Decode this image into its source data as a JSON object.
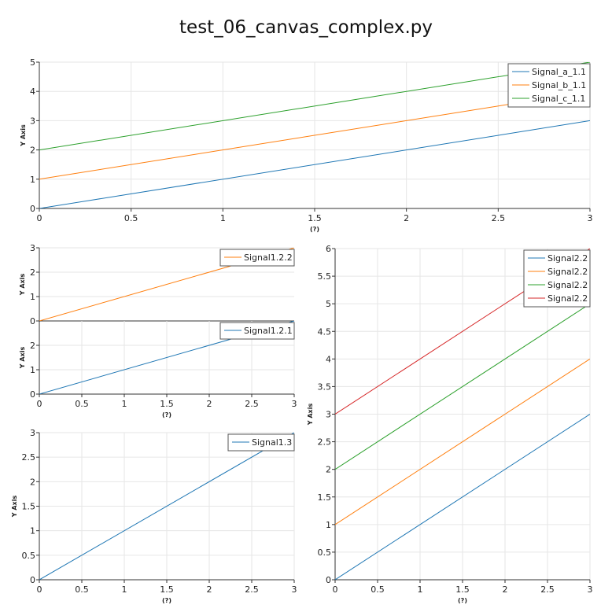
{
  "title": "test_06_canvas_complex.py",
  "colors": {
    "blue": "#1f77b4",
    "orange": "#ff7f0e",
    "green": "#2ca02c",
    "red": "#d62728",
    "grid": "#e6e6e6"
  },
  "chart_data": [
    {
      "type": "line",
      "xlabel": "(?)",
      "ylabel": "Y Axis",
      "xlim": [
        0,
        3
      ],
      "ylim": [
        0,
        5
      ],
      "xticks": [
        "0",
        "0.5",
        "1",
        "1.5",
        "2",
        "2.5",
        "3"
      ],
      "yticks": [
        "0",
        "1",
        "2",
        "3",
        "4",
        "5"
      ],
      "grid": true,
      "legend": "top-right",
      "series": [
        {
          "name": "Signal_a_1.1",
          "color": "#1f77b4",
          "x": [
            0,
            3
          ],
          "y": [
            0,
            3
          ]
        },
        {
          "name": "Signal_b_1.1",
          "color": "#ff7f0e",
          "x": [
            0,
            3
          ],
          "y": [
            1,
            4
          ]
        },
        {
          "name": "Signal_c_1.1",
          "color": "#2ca02c",
          "x": [
            0,
            3
          ],
          "y": [
            2,
            5
          ]
        }
      ]
    },
    {
      "type": "line",
      "xlabel": "",
      "ylabel": "Y Axis",
      "xlim": [
        0,
        3
      ],
      "ylim": [
        0,
        3
      ],
      "xticks": [],
      "yticks": [
        "0",
        "1",
        "2",
        "3"
      ],
      "grid": true,
      "legend": "top-right",
      "series": [
        {
          "name": "Signal1.2.2",
          "color": "#ff7f0e",
          "x": [
            0,
            3
          ],
          "y": [
            0,
            3
          ]
        }
      ]
    },
    {
      "type": "line",
      "xlabel": "(?)",
      "ylabel": "Y Axis",
      "xlim": [
        0,
        3
      ],
      "ylim": [
        0,
        3
      ],
      "xticks": [
        "0",
        "0.5",
        "1",
        "1.5",
        "2",
        "2.5",
        "3"
      ],
      "yticks": [
        "0",
        "1",
        "2"
      ],
      "grid": true,
      "legend": "top-right",
      "series": [
        {
          "name": "Signal1.2.1",
          "color": "#1f77b4",
          "x": [
            0,
            3
          ],
          "y": [
            0,
            3
          ]
        }
      ]
    },
    {
      "type": "line",
      "xlabel": "(?)",
      "ylabel": "Y Axis",
      "xlim": [
        0,
        3
      ],
      "ylim": [
        0,
        3
      ],
      "xticks": [
        "0",
        "0.5",
        "1",
        "1.5",
        "2",
        "2.5",
        "3"
      ],
      "yticks": [
        "0",
        "0.5",
        "1",
        "1.5",
        "2",
        "2.5",
        "3"
      ],
      "grid": true,
      "legend": "top-right",
      "series": [
        {
          "name": "Signal1.3",
          "color": "#1f77b4",
          "x": [
            0,
            3
          ],
          "y": [
            0,
            3
          ]
        }
      ]
    },
    {
      "type": "line",
      "xlabel": "(?)",
      "ylabel": "Y Axis",
      "xlim": [
        0,
        3
      ],
      "ylim": [
        0,
        6
      ],
      "xticks": [
        "0",
        "0.5",
        "1",
        "1.5",
        "2",
        "2.5",
        "3"
      ],
      "yticks": [
        "0",
        "0.5",
        "1",
        "1.5",
        "2",
        "2.5",
        "3",
        "3.5",
        "4",
        "4.5",
        "5",
        "5.5",
        "6"
      ],
      "grid": true,
      "legend": "top-right",
      "series": [
        {
          "name": "Signal2.2",
          "color": "#1f77b4",
          "x": [
            0,
            3
          ],
          "y": [
            0,
            3
          ]
        },
        {
          "name": "Signal2.2",
          "color": "#ff7f0e",
          "x": [
            0,
            3
          ],
          "y": [
            1,
            4
          ]
        },
        {
          "name": "Signal2.2",
          "color": "#2ca02c",
          "x": [
            0,
            3
          ],
          "y": [
            2,
            5
          ]
        },
        {
          "name": "Signal2.2",
          "color": "#d62728",
          "x": [
            0,
            3
          ],
          "y": [
            3,
            6
          ]
        }
      ]
    }
  ]
}
